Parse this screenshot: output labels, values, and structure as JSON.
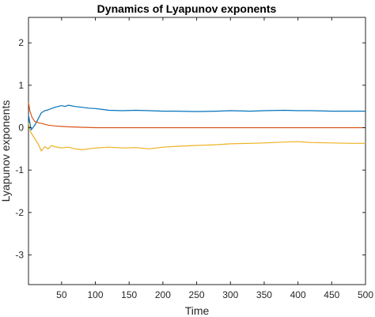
{
  "chart_data": {
    "type": "line",
    "title": "Dynamics of Lyapunov exponents",
    "xlabel": "Time",
    "ylabel": "Lyapunov exponents",
    "xlim": [
      1,
      500
    ],
    "ylim": [
      -3.7,
      2.6
    ],
    "xticks": [
      50,
      100,
      150,
      200,
      250,
      300,
      350,
      400,
      450,
      500
    ],
    "yticks": [
      2,
      1,
      0,
      -1,
      -2,
      -3
    ],
    "grid": false,
    "legend": "none",
    "series": [
      {
        "color": "#0072BD",
        "x": [
          1,
          5,
          10,
          15,
          20,
          25,
          30,
          35,
          40,
          45,
          50,
          55,
          60,
          70,
          80,
          90,
          100,
          110,
          120,
          140,
          160,
          180,
          200,
          220,
          250,
          280,
          300,
          330,
          350,
          380,
          400,
          420,
          450,
          480,
          500
        ],
        "y": [
          0.3,
          -0.05,
          0.05,
          0.2,
          0.35,
          0.4,
          0.42,
          0.45,
          0.48,
          0.5,
          0.52,
          0.5,
          0.53,
          0.5,
          0.48,
          0.46,
          0.45,
          0.43,
          0.41,
          0.4,
          0.41,
          0.4,
          0.39,
          0.39,
          0.38,
          0.39,
          0.4,
          0.39,
          0.4,
          0.41,
          0.4,
          0.4,
          0.39,
          0.39,
          0.39
        ]
      },
      {
        "color": "#D95319",
        "x": [
          1,
          3,
          6,
          10,
          15,
          20,
          25,
          30,
          40,
          50,
          60,
          80,
          100,
          150,
          200,
          250,
          300,
          350,
          400,
          450,
          500
        ],
        "y": [
          0.6,
          0.4,
          0.25,
          0.15,
          0.12,
          0.1,
          0.08,
          0.06,
          0.04,
          0.03,
          0.02,
          0.01,
          0.0,
          0.0,
          0.0,
          0.0,
          0.0,
          0.0,
          0.0,
          0.0,
          0.0
        ]
      },
      {
        "color": "#EDB120",
        "x": [
          1,
          4,
          8,
          12,
          16,
          20,
          25,
          30,
          35,
          40,
          50,
          60,
          70,
          80,
          90,
          100,
          120,
          140,
          160,
          180,
          200,
          220,
          250,
          280,
          300,
          330,
          350,
          380,
          400,
          420,
          450,
          480,
          500
        ],
        "y": [
          0.1,
          -0.1,
          -0.2,
          -0.3,
          -0.4,
          -0.55,
          -0.45,
          -0.5,
          -0.42,
          -0.45,
          -0.48,
          -0.46,
          -0.5,
          -0.52,
          -0.5,
          -0.48,
          -0.46,
          -0.48,
          -0.47,
          -0.5,
          -0.46,
          -0.44,
          -0.42,
          -0.4,
          -0.38,
          -0.37,
          -0.36,
          -0.34,
          -0.33,
          -0.35,
          -0.36,
          -0.37,
          -0.37
        ]
      }
    ]
  }
}
